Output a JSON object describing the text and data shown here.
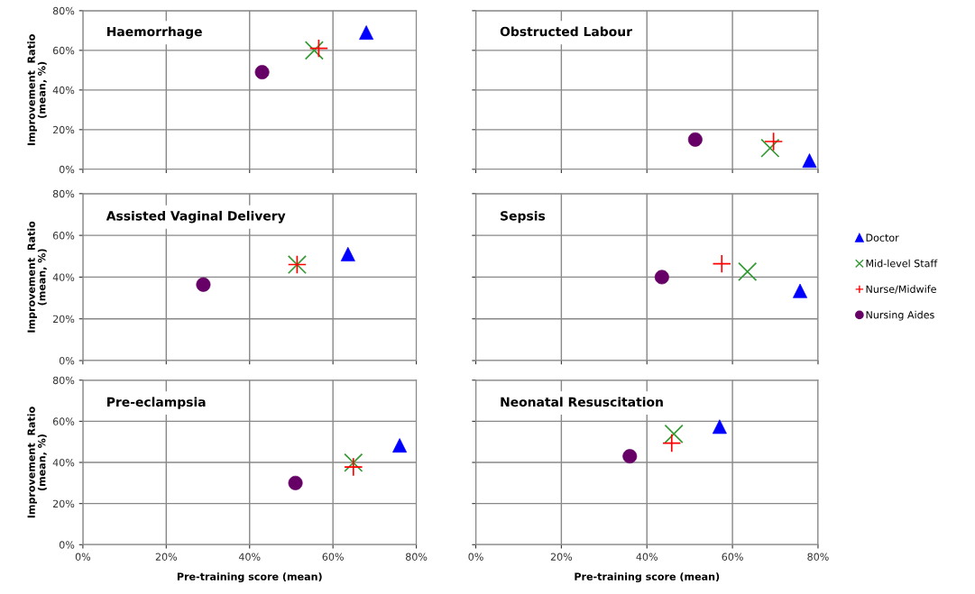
{
  "chart_data": [
    {
      "type": "scatter",
      "title": "Haemorrhage",
      "ylabel": "Improvement  Ratio\n(mean, %)",
      "xlim": [
        0,
        80
      ],
      "ylim": [
        0,
        80
      ],
      "xticks": [
        {
          "value": 0,
          "label": null
        },
        {
          "value": 20,
          "label": null
        },
        {
          "value": 40,
          "label": null
        },
        {
          "value": 60,
          "label": null
        },
        {
          "value": 80,
          "label": null
        }
      ],
      "yticks": [
        {
          "value": 0,
          "label": "0%"
        },
        {
          "value": 20,
          "label": "20%"
        },
        {
          "value": 40,
          "label": "40%"
        },
        {
          "value": 60,
          "label": "60%"
        },
        {
          "value": 80,
          "label": "80%"
        }
      ],
      "tick_labels": "y",
      "grid": true,
      "series": [
        {
          "color": "#0000ff",
          "marker": "triangle",
          "x": [
            68
          ],
          "values": [
            69
          ]
        },
        {
          "color": "#339933",
          "marker": "cross",
          "x": [
            55.5
          ],
          "values": [
            60
          ]
        },
        {
          "color": "#ff0000",
          "marker": "plus",
          "x": [
            56.6
          ],
          "values": [
            61
          ]
        },
        {
          "color": "#660066",
          "marker": "circle",
          "x": [
            43
          ],
          "values": [
            49
          ]
        }
      ]
    },
    {
      "type": "scatter",
      "title": "Obstructed Labour",
      "xlim": [
        0,
        80
      ],
      "ylim": [
        0,
        80
      ],
      "xticks": [
        {
          "value": 0,
          "label": null
        },
        {
          "value": 20,
          "label": null
        },
        {
          "value": 40,
          "label": null
        },
        {
          "value": 60,
          "label": null
        },
        {
          "value": 80,
          "label": null
        }
      ],
      "yticks": [
        {
          "value": 0,
          "label": null
        },
        {
          "value": 20,
          "label": null
        },
        {
          "value": 40,
          "label": null
        },
        {
          "value": 60,
          "label": null
        },
        {
          "value": 80,
          "label": null
        }
      ],
      "tick_labels": false,
      "grid": true,
      "series": [
        {
          "color": "#0000ff",
          "marker": "triangle",
          "x": [
            78
          ],
          "values": [
            4.4
          ]
        },
        {
          "color": "#339933",
          "marker": "cross",
          "x": [
            68.8
          ],
          "values": [
            10.7
          ]
        },
        {
          "color": "#ff0000",
          "marker": "plus",
          "x": [
            69.6
          ],
          "values": [
            14
          ]
        },
        {
          "color": "#660066",
          "marker": "circle",
          "x": [
            51.3
          ],
          "values": [
            15
          ]
        }
      ]
    },
    {
      "type": "scatter",
      "title": "Assisted Vaginal Delivery",
      "ylabel": "Improvement  Ratio\n(mean, %)",
      "xlim": [
        0,
        80
      ],
      "ylim": [
        0,
        80
      ],
      "xticks": [
        {
          "value": 0,
          "label": null
        },
        {
          "value": 20,
          "label": null
        },
        {
          "value": 40,
          "label": null
        },
        {
          "value": 60,
          "label": null
        },
        {
          "value": 80,
          "label": null
        }
      ],
      "yticks": [
        {
          "value": 0,
          "label": "0%"
        },
        {
          "value": 20,
          "label": "20%"
        },
        {
          "value": 40,
          "label": "40%"
        },
        {
          "value": 60,
          "label": "60%"
        },
        {
          "value": 80,
          "label": "80%"
        }
      ],
      "tick_labels": "y",
      "grid": true,
      "series": [
        {
          "color": "#0000ff",
          "marker": "triangle",
          "x": [
            63.6
          ],
          "values": [
            51
          ]
        },
        {
          "color": "#339933",
          "marker": "cross",
          "x": [
            51.4
          ],
          "values": [
            46
          ]
        },
        {
          "color": "#ff0000",
          "marker": "plus",
          "x": [
            51.4
          ],
          "values": [
            46
          ]
        },
        {
          "color": "#660066",
          "marker": "circle",
          "x": [
            28.9
          ],
          "values": [
            36.4
          ]
        }
      ]
    },
    {
      "type": "scatter",
      "title": "Sepsis",
      "xlim": [
        0,
        80
      ],
      "ylim": [
        0,
        80
      ],
      "xticks": [
        {
          "value": 0,
          "label": null
        },
        {
          "value": 20,
          "label": null
        },
        {
          "value": 40,
          "label": null
        },
        {
          "value": 60,
          "label": null
        },
        {
          "value": 80,
          "label": null
        }
      ],
      "yticks": [
        {
          "value": 0,
          "label": null
        },
        {
          "value": 20,
          "label": null
        },
        {
          "value": 40,
          "label": null
        },
        {
          "value": 60,
          "label": null
        },
        {
          "value": 80,
          "label": null
        }
      ],
      "tick_labels": false,
      "grid": true,
      "legend": "right",
      "series": [
        {
          "name": "Doctor",
          "color": "#0000ff",
          "marker": "triangle",
          "x": [
            75.8
          ],
          "values": [
            33.4
          ]
        },
        {
          "name": "Mid-level Staff",
          "color": "#339933",
          "marker": "cross",
          "x": [
            63.5
          ],
          "values": [
            42.6
          ]
        },
        {
          "name": "Nurse/Midwife",
          "color": "#ff0000",
          "marker": "plus",
          "x": [
            57.5
          ],
          "values": [
            46.4
          ]
        },
        {
          "name": "Nursing Aides",
          "color": "#660066",
          "marker": "circle",
          "x": [
            43.5
          ],
          "values": [
            40
          ]
        }
      ]
    },
    {
      "type": "scatter",
      "title": "Pre-eclampsia",
      "xlabel": "Pre-training score (mean)",
      "ylabel": "Improvement  Ratio\n(mean, %)",
      "xlim": [
        0,
        80
      ],
      "ylim": [
        0,
        80
      ],
      "xticks": [
        {
          "value": 0,
          "label": "0%"
        },
        {
          "value": 20,
          "label": "20%"
        },
        {
          "value": 40,
          "label": "40%"
        },
        {
          "value": 60,
          "label": "60%"
        },
        {
          "value": 80,
          "label": "80%"
        }
      ],
      "yticks": [
        {
          "value": 0,
          "label": "0%"
        },
        {
          "value": 20,
          "label": "20%"
        },
        {
          "value": 40,
          "label": "40%"
        },
        {
          "value": 60,
          "label": "60%"
        },
        {
          "value": 80,
          "label": "80%"
        }
      ],
      "grid": true,
      "series": [
        {
          "color": "#0000ff",
          "marker": "triangle",
          "x": [
            76
          ],
          "values": [
            48.3
          ]
        },
        {
          "color": "#339933",
          "marker": "cross",
          "x": [
            64.9
          ],
          "values": [
            39.9
          ]
        },
        {
          "color": "#ff0000",
          "marker": "plus",
          "x": [
            64.9
          ],
          "values": [
            37.8
          ]
        },
        {
          "color": "#660066",
          "marker": "circle",
          "x": [
            51
          ],
          "values": [
            30
          ]
        }
      ]
    },
    {
      "type": "scatter",
      "title": "Neonatal Resuscitation",
      "xlabel": "Pre-training score (mean)",
      "xlim": [
        0,
        80
      ],
      "ylim": [
        0,
        80
      ],
      "xticks": [
        {
          "value": 0,
          "label": "0%"
        },
        {
          "value": 20,
          "label": "20%"
        },
        {
          "value": 40,
          "label": "40%"
        },
        {
          "value": 60,
          "label": "60%"
        },
        {
          "value": 80,
          "label": "80%"
        }
      ],
      "yticks": [
        {
          "value": 0,
          "label": null
        },
        {
          "value": 20,
          "label": null
        },
        {
          "value": 40,
          "label": null
        },
        {
          "value": 60,
          "label": null
        },
        {
          "value": 80,
          "label": null
        }
      ],
      "tick_labels": "x",
      "grid": true,
      "series": [
        {
          "color": "#0000ff",
          "marker": "triangle",
          "x": [
            57
          ],
          "values": [
            57.4
          ]
        },
        {
          "color": "#339933",
          "marker": "cross",
          "x": [
            46.3
          ],
          "values": [
            53.9
          ]
        },
        {
          "color": "#ff0000",
          "marker": "plus",
          "x": [
            45.8
          ],
          "values": [
            49.4
          ]
        },
        {
          "color": "#660066",
          "marker": "circle",
          "x": [
            36
          ],
          "values": [
            43
          ]
        }
      ]
    }
  ]
}
